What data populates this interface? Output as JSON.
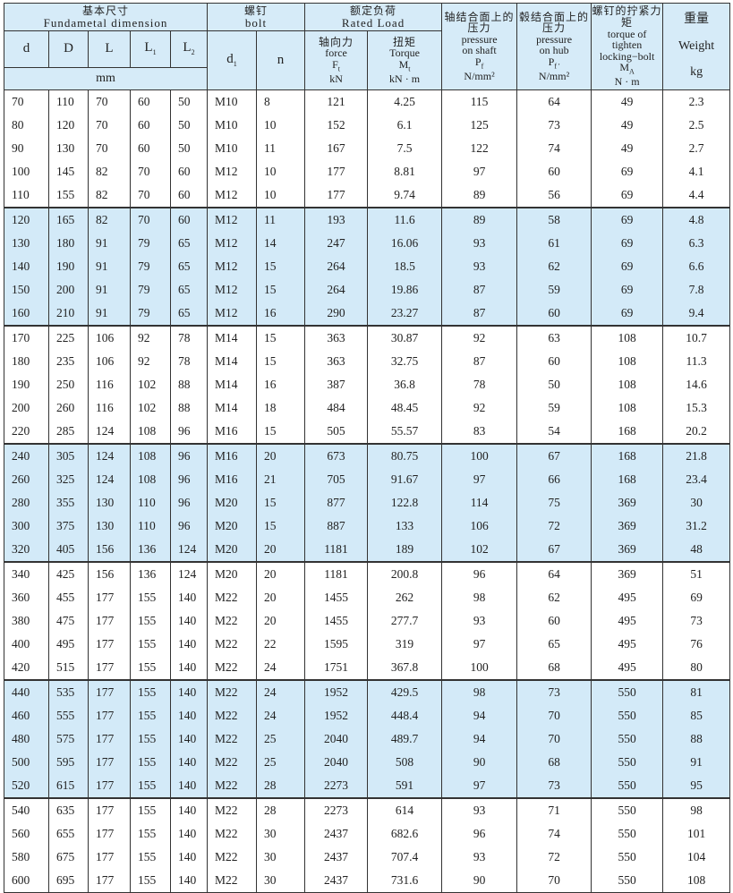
{
  "header": {
    "fund_zh": "基本尺寸",
    "fund_en": "Fundametal dimension",
    "bolt_zh": "螺钉",
    "bolt_en": "bolt",
    "rated_zh": "额定负荷",
    "rated_en": "Rated Load",
    "shaft_zh": "轴结合面上的压力",
    "shaft_en1": "pressure",
    "shaft_en2": "on shaft",
    "shaft_sym": "P",
    "shaft_sub": "f",
    "shaft_unit": "N/mm²",
    "hub_zh": "毂结合面上的压力",
    "hub_en1": "pressure",
    "hub_en2": "on hub",
    "hub_sym": "P",
    "hub_sub": "f '",
    "hub_unit": "N/mm²",
    "tq_zh": "螺钉的拧紧力矩",
    "tq_en": "torque of tighten locking−bolt",
    "tq_sym": "M",
    "tq_sub": "A",
    "tq_unit": "N · m",
    "wt_zh": "重量",
    "wt_en": "Weight",
    "wt_unit": "kg",
    "d": "d",
    "D": "D",
    "L": "L",
    "L1": "L",
    "L1_sub": "1",
    "L2": "L",
    "L2_sub": "2",
    "mm": "mm",
    "d1": "d",
    "d1_sub": "1",
    "n": "n",
    "force_zh": "轴向力",
    "force_en": "force",
    "force_sym": "F",
    "force_sub": "t",
    "force_unit": "kN",
    "torque_zh": "扭矩",
    "torque_en": "Torque",
    "torque_sym": "M",
    "torque_sub": "t",
    "torque_unit": "kN · m"
  },
  "rows": [
    [
      "70",
      "110",
      "70",
      "60",
      "50",
      "M10",
      "8",
      "121",
      "4.25",
      "115",
      "64",
      "49",
      "2.3"
    ],
    [
      "80",
      "120",
      "70",
      "60",
      "50",
      "M10",
      "10",
      "152",
      "6.1",
      "125",
      "73",
      "49",
      "2.5"
    ],
    [
      "90",
      "130",
      "70",
      "60",
      "50",
      "M10",
      "11",
      "167",
      "7.5",
      "122",
      "74",
      "49",
      "2.7"
    ],
    [
      "100",
      "145",
      "82",
      "70",
      "60",
      "M12",
      "10",
      "177",
      "8.81",
      "97",
      "60",
      "69",
      "4.1"
    ],
    [
      "110",
      "155",
      "82",
      "70",
      "60",
      "M12",
      "10",
      "177",
      "9.74",
      "89",
      "56",
      "69",
      "4.4"
    ],
    [
      "120",
      "165",
      "82",
      "70",
      "60",
      "M12",
      "11",
      "193",
      "11.6",
      "89",
      "58",
      "69",
      "4.8"
    ],
    [
      "130",
      "180",
      "91",
      "79",
      "65",
      "M12",
      "14",
      "247",
      "16.06",
      "93",
      "61",
      "69",
      "6.3"
    ],
    [
      "140",
      "190",
      "91",
      "79",
      "65",
      "M12",
      "15",
      "264",
      "18.5",
      "93",
      "62",
      "69",
      "6.6"
    ],
    [
      "150",
      "200",
      "91",
      "79",
      "65",
      "M12",
      "15",
      "264",
      "19.86",
      "87",
      "59",
      "69",
      "7.8"
    ],
    [
      "160",
      "210",
      "91",
      "79",
      "65",
      "M12",
      "16",
      "290",
      "23.27",
      "87",
      "60",
      "69",
      "9.4"
    ],
    [
      "170",
      "225",
      "106",
      "92",
      "78",
      "M14",
      "15",
      "363",
      "30.87",
      "92",
      "63",
      "108",
      "10.7"
    ],
    [
      "180",
      "235",
      "106",
      "92",
      "78",
      "M14",
      "15",
      "363",
      "32.75",
      "87",
      "60",
      "108",
      "11.3"
    ],
    [
      "190",
      "250",
      "116",
      "102",
      "88",
      "M14",
      "16",
      "387",
      "36.8",
      "78",
      "50",
      "108",
      "14.6"
    ],
    [
      "200",
      "260",
      "116",
      "102",
      "88",
      "M14",
      "18",
      "484",
      "48.45",
      "92",
      "59",
      "108",
      "15.3"
    ],
    [
      "220",
      "285",
      "124",
      "108",
      "96",
      "M16",
      "15",
      "505",
      "55.57",
      "83",
      "54",
      "168",
      "20.2"
    ],
    [
      "240",
      "305",
      "124",
      "108",
      "96",
      "M16",
      "20",
      "673",
      "80.75",
      "100",
      "67",
      "168",
      "21.8"
    ],
    [
      "260",
      "325",
      "124",
      "108",
      "96",
      "M16",
      "21",
      "705",
      "91.67",
      "97",
      "66",
      "168",
      "23.4"
    ],
    [
      "280",
      "355",
      "130",
      "110",
      "96",
      "M20",
      "15",
      "877",
      "122.8",
      "114",
      "75",
      "369",
      "30"
    ],
    [
      "300",
      "375",
      "130",
      "110",
      "96",
      "M20",
      "15",
      "887",
      "133",
      "106",
      "72",
      "369",
      "31.2"
    ],
    [
      "320",
      "405",
      "156",
      "136",
      "124",
      "M20",
      "20",
      "1181",
      "189",
      "102",
      "67",
      "369",
      "48"
    ],
    [
      "340",
      "425",
      "156",
      "136",
      "124",
      "M20",
      "20",
      "1181",
      "200.8",
      "96",
      "64",
      "369",
      "51"
    ],
    [
      "360",
      "455",
      "177",
      "155",
      "140",
      "M22",
      "20",
      "1455",
      "262",
      "98",
      "62",
      "495",
      "69"
    ],
    [
      "380",
      "475",
      "177",
      "155",
      "140",
      "M22",
      "20",
      "1455",
      "277.7",
      "93",
      "60",
      "495",
      "73"
    ],
    [
      "400",
      "495",
      "177",
      "155",
      "140",
      "M22",
      "22",
      "1595",
      "319",
      "97",
      "65",
      "495",
      "76"
    ],
    [
      "420",
      "515",
      "177",
      "155",
      "140",
      "M22",
      "24",
      "1751",
      "367.8",
      "100",
      "68",
      "495",
      "80"
    ],
    [
      "440",
      "535",
      "177",
      "155",
      "140",
      "M22",
      "24",
      "1952",
      "429.5",
      "98",
      "73",
      "550",
      "81"
    ],
    [
      "460",
      "555",
      "177",
      "155",
      "140",
      "M22",
      "24",
      "1952",
      "448.4",
      "94",
      "70",
      "550",
      "85"
    ],
    [
      "480",
      "575",
      "177",
      "155",
      "140",
      "M22",
      "25",
      "2040",
      "489.7",
      "94",
      "70",
      "550",
      "88"
    ],
    [
      "500",
      "595",
      "177",
      "155",
      "140",
      "M22",
      "25",
      "2040",
      "508",
      "90",
      "68",
      "550",
      "91"
    ],
    [
      "520",
      "615",
      "177",
      "155",
      "140",
      "M22",
      "28",
      "2273",
      "591",
      "97",
      "73",
      "550",
      "95"
    ],
    [
      "540",
      "635",
      "177",
      "155",
      "140",
      "M22",
      "28",
      "2273",
      "614",
      "93",
      "71",
      "550",
      "98"
    ],
    [
      "560",
      "655",
      "177",
      "155",
      "140",
      "M22",
      "30",
      "2437",
      "682.6",
      "96",
      "74",
      "550",
      "101"
    ],
    [
      "580",
      "675",
      "177",
      "155",
      "140",
      "M22",
      "30",
      "2437",
      "707.4",
      "93",
      "72",
      "550",
      "104"
    ],
    [
      "600",
      "695",
      "177",
      "155",
      "140",
      "M22",
      "30",
      "2437",
      "731.6",
      "90",
      "70",
      "550",
      "108"
    ]
  ],
  "colors": {
    "header_bg": "#d6ebf8",
    "band_bg": "#d3eaf8",
    "border": "#333333"
  }
}
